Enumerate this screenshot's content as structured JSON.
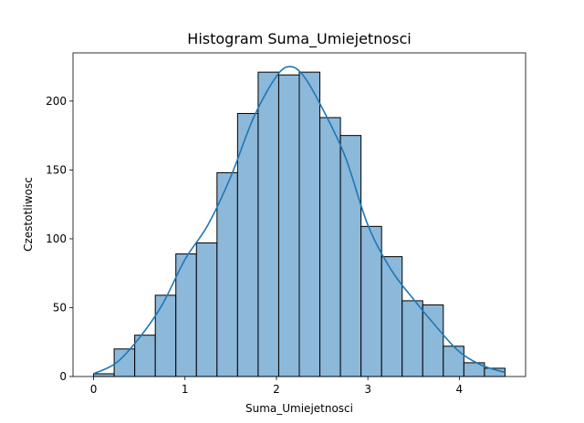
{
  "chart_data": {
    "type": "bar",
    "title": "Histogram Suma_Umiejetnosci",
    "xlabel": "Suma_Umiejetnosci",
    "ylabel": "Czestotliwosc",
    "xlim": [
      -0.225,
      4.725
    ],
    "ylim": [
      0,
      235
    ],
    "bin_width": 0.225,
    "bins": [
      {
        "start": 0.0,
        "end": 0.225,
        "count": 2
      },
      {
        "start": 0.225,
        "end": 0.45,
        "count": 20
      },
      {
        "start": 0.45,
        "end": 0.675,
        "count": 30
      },
      {
        "start": 0.675,
        "end": 0.9,
        "count": 59
      },
      {
        "start": 0.9,
        "end": 1.125,
        "count": 89
      },
      {
        "start": 1.125,
        "end": 1.35,
        "count": 97
      },
      {
        "start": 1.35,
        "end": 1.575,
        "count": 148
      },
      {
        "start": 1.575,
        "end": 1.8,
        "count": 191
      },
      {
        "start": 1.8,
        "end": 2.025,
        "count": 221
      },
      {
        "start": 2.025,
        "end": 2.25,
        "count": 219
      },
      {
        "start": 2.25,
        "end": 2.475,
        "count": 221
      },
      {
        "start": 2.475,
        "end": 2.7,
        "count": 188
      },
      {
        "start": 2.7,
        "end": 2.925,
        "count": 175
      },
      {
        "start": 2.925,
        "end": 3.15,
        "count": 109
      },
      {
        "start": 3.15,
        "end": 3.375,
        "count": 87
      },
      {
        "start": 3.375,
        "end": 3.6,
        "count": 55
      },
      {
        "start": 3.6,
        "end": 3.825,
        "count": 52
      },
      {
        "start": 3.825,
        "end": 4.05,
        "count": 22
      },
      {
        "start": 4.05,
        "end": 4.275,
        "count": 10
      },
      {
        "start": 4.275,
        "end": 4.5,
        "count": 6
      }
    ],
    "kde": {
      "x": [
        0.0,
        0.25,
        0.5,
        0.75,
        1.0,
        1.25,
        1.5,
        1.75,
        2.0,
        2.15,
        2.3,
        2.5,
        2.75,
        3.0,
        3.25,
        3.5,
        3.75,
        4.0,
        4.25,
        4.5
      ],
      "y": [
        2,
        10,
        28,
        52,
        85,
        110,
        145,
        188,
        218,
        225,
        218,
        195,
        160,
        110,
        78,
        56,
        36,
        18,
        8,
        3
      ]
    },
    "x_ticks": [
      0,
      1,
      2,
      3,
      4
    ],
    "y_ticks": [
      0,
      50,
      100,
      150,
      200
    ],
    "colors": {
      "bar_fill": "#8cb8da",
      "bar_edge": "#000000",
      "kde_line": "#1f77b4"
    }
  }
}
